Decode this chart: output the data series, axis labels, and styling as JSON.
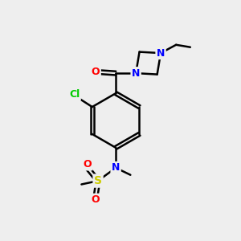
{
  "bg_color": "#eeeeee",
  "bond_color": "#000000",
  "atom_colors": {
    "N": "#0000ff",
    "O": "#ff0000",
    "Cl": "#00cc00",
    "S": "#cccc00",
    "C": "#000000"
  },
  "figsize": [
    3.0,
    3.0
  ],
  "dpi": 100,
  "lw": 1.8
}
